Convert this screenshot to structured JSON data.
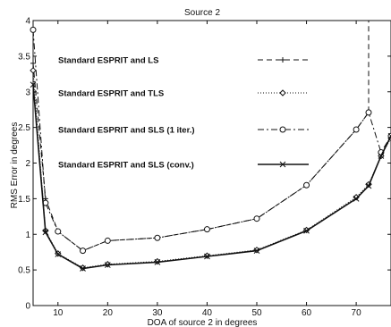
{
  "chart_data": {
    "type": "line",
    "title": "Source 2",
    "xlabel": "DOA of source 2 in  degrees",
    "ylabel": "RMS Error in degrees",
    "xlim": [
      5,
      77
    ],
    "ylim": [
      0,
      4
    ],
    "xticks": [
      10,
      20,
      30,
      40,
      50,
      60,
      70
    ],
    "yticks": [
      0,
      0.5,
      1,
      1.5,
      2,
      2.5,
      3,
      3.5,
      4
    ],
    "xtick_labels": [
      "10",
      "20",
      "30",
      "40",
      "50",
      "60",
      "70"
    ],
    "ytick_labels": [
      "0",
      "0.5",
      "1",
      "1.5",
      "2",
      "2.5",
      "3",
      "3.5",
      "4"
    ],
    "grid": false,
    "legend_position": "upper-left",
    "series": [
      {
        "name": "Standard ESPRIT and LS",
        "dash": "6,4",
        "marker": "plus",
        "x": [
          5,
          7.5,
          10,
          15,
          20,
          30,
          40,
          50,
          60,
          70,
          72.5,
          72.5
        ],
        "y": [
          3.4,
          1.5,
          1.04,
          0.77,
          0.91,
          0.95,
          1.07,
          1.22,
          1.69,
          2.47,
          2.71,
          4.0
        ]
      },
      {
        "name": "Standard ESPRIT and TLS",
        "dash": "1,2",
        "marker": "diamond",
        "x": [
          5,
          7.5,
          10,
          15,
          20,
          30,
          40,
          50,
          60,
          70,
          72.5,
          75,
          77
        ],
        "y": [
          3.3,
          1.05,
          0.73,
          0.53,
          0.58,
          0.62,
          0.7,
          0.78,
          1.06,
          1.52,
          1.7,
          2.1,
          2.35
        ]
      },
      {
        "name": "Standard ESPRIT and SLS (1 iter.)",
        "dash": "7,3,2,3",
        "marker": "circle",
        "x": [
          5,
          7.5,
          10,
          15,
          20,
          30,
          40,
          50,
          60,
          70,
          72.5,
          75,
          77
        ],
        "y": [
          3.87,
          1.44,
          1.04,
          0.77,
          0.91,
          0.95,
          1.07,
          1.22,
          1.69,
          2.47,
          2.71,
          2.15,
          2.38
        ]
      },
      {
        "name": "Standard ESPRIT and SLS (conv.)",
        "dash": "",
        "marker": "x",
        "x": [
          5,
          7.5,
          10,
          15,
          20,
          30,
          40,
          50,
          60,
          70,
          72.5,
          75,
          77
        ],
        "y": [
          3.1,
          1.03,
          0.72,
          0.52,
          0.57,
          0.61,
          0.69,
          0.77,
          1.05,
          1.5,
          1.68,
          2.1,
          2.38
        ]
      }
    ]
  }
}
